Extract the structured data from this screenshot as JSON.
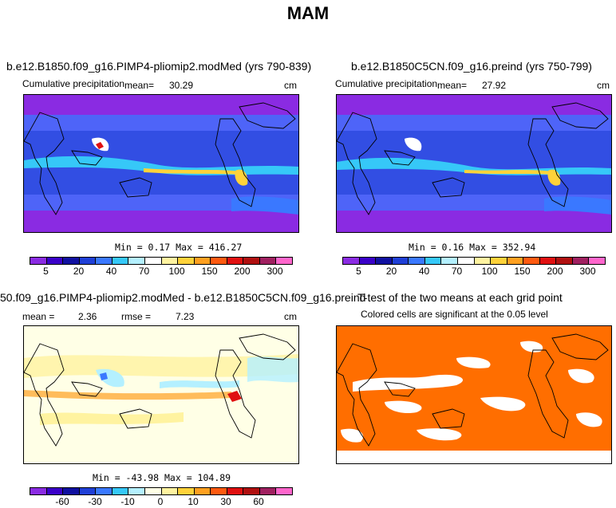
{
  "title": "MAM",
  "panel1": {
    "title": "b.e12.B1850.f09_g16.PIMP4-pliomip2.modMed (yrs 790-839)",
    "variable": "Cumulative precipitation",
    "mean_label": "mean=",
    "mean_value": "30.29",
    "units": "cm",
    "minmax": "Min =   0.17 Max = 416.27"
  },
  "panel2": {
    "title": "b.e12.B1850C5CN.f09_g16.preind (yrs 750-799)",
    "variable": "Cumulative precipitation",
    "mean_label": "mean=",
    "mean_value": "27.92",
    "units": "cm",
    "minmax": "Min =   0.16 Max = 352.94"
  },
  "panel3": {
    "title": "50.f09_g16.PIMP4-pliomip2.modMed - b.e12.B1850C5CN.f09_g16.preind",
    "mean_label": "mean =",
    "mean_value": "2.36",
    "rmse_label": "rmse =",
    "rmse_value": "7.23",
    "units": "cm",
    "minmax": "Min = -43.98 Max = 104.89"
  },
  "panel4": {
    "title": "T-test of the two means at each grid point",
    "subtitle": "Colored cells are significant at the 0.05 level"
  },
  "colorbar_precip": {
    "ticks": [
      "5",
      "20",
      "40",
      "70",
      "100",
      "150",
      "200",
      "300"
    ],
    "colors": [
      "#8a2be2",
      "#3a00c8",
      "#1010a0",
      "#1f3fd6",
      "#3a78ff",
      "#36c8f8",
      "#b4f0ff",
      "#ffffff",
      "#fff3a0",
      "#ffd23a",
      "#ffa020",
      "#ff5a10",
      "#e01010",
      "#b01010",
      "#a02060",
      "#ff66cc"
    ]
  },
  "colorbar_diff": {
    "ticks": [
      "-60",
      "-30",
      "-10",
      "0",
      "10",
      "30",
      "60"
    ],
    "colors": [
      "#8a2be2",
      "#3a00c8",
      "#1010a0",
      "#1f3fd6",
      "#3a78ff",
      "#36c8f8",
      "#b4f0ff",
      "#ffffe6",
      "#fff3a0",
      "#ffd23a",
      "#ffa020",
      "#ff5a10",
      "#e01010",
      "#b01010",
      "#a02060",
      "#ff66cc"
    ]
  },
  "ttest_color": "#ff6e00"
}
